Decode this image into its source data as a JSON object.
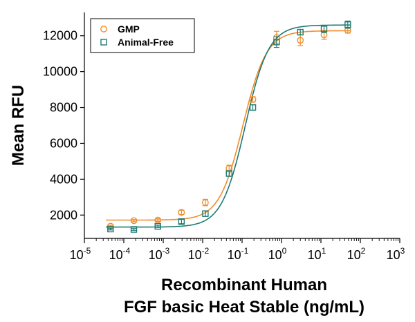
{
  "chart_data": {
    "type": "scatter",
    "title": "",
    "xlabel_lines": [
      "Recombinant Human",
      "FGF basic Heat Stable (ng/mL)"
    ],
    "ylabel": "Mean RFU",
    "x_scale": "log10",
    "xlim": [
      1e-05,
      1000
    ],
    "ylim": [
      700,
      13300
    ],
    "x_tick_values": [
      1e-05,
      0.0001,
      0.001,
      0.01,
      0.1,
      1,
      10,
      100,
      1000
    ],
    "x_tick_base": "10",
    "x_tick_exponents": [
      "-5",
      "-4",
      "-3",
      "-2",
      "-1",
      "0",
      "1",
      "2",
      "3"
    ],
    "y_tick_values": [
      2000,
      4000,
      6000,
      8000,
      10000,
      12000
    ],
    "y_tick_labels": [
      "2000",
      "4000",
      "6000",
      "8000",
      "10000",
      "12000"
    ],
    "grid": false,
    "legend_position": "top-left",
    "series": [
      {
        "name": "GMP",
        "marker": "circle",
        "color": "#F28C28",
        "x": [
          4.6e-05,
          0.00018,
          0.00073,
          0.0029,
          0.0117,
          0.0469,
          0.1875,
          0.75,
          3,
          12,
          48
        ],
        "y": [
          1380,
          1690,
          1720,
          2150,
          2700,
          4600,
          8450,
          11900,
          11750,
          12050,
          12300
        ],
        "error": [
          60,
          60,
          80,
          120,
          180,
          180,
          150,
          350,
          300,
          250,
          150
        ],
        "fit": {
          "bottom": 1720,
          "top": 12280,
          "ec50": 0.105,
          "hill": 1.45
        }
      },
      {
        "name": "Animal-Free",
        "marker": "square",
        "color": "#1F7A73",
        "x": [
          4.6e-05,
          0.00018,
          0.00073,
          0.0029,
          0.0117,
          0.0469,
          0.1875,
          0.75,
          3,
          12,
          48
        ],
        "y": [
          1220,
          1200,
          1370,
          1640,
          2080,
          4320,
          8000,
          11650,
          12200,
          12380,
          12620
        ],
        "error": [
          50,
          50,
          60,
          120,
          150,
          150,
          150,
          300,
          150,
          200,
          200
        ],
        "fit": {
          "bottom": 1330,
          "top": 12600,
          "ec50": 0.12,
          "hill": 1.45
        }
      }
    ]
  }
}
